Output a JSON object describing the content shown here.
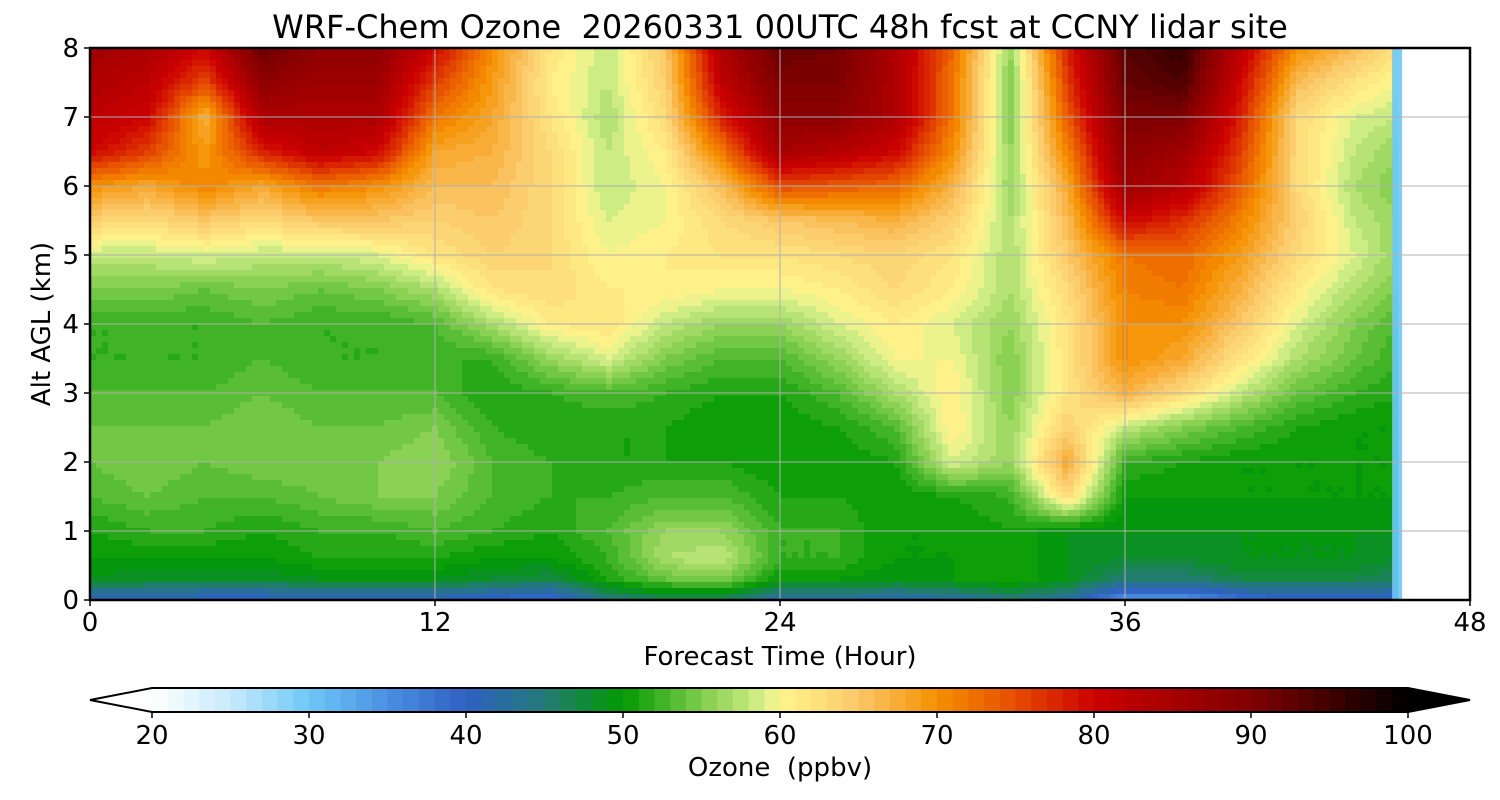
{
  "chart_data": {
    "type": "heatmap",
    "title": "WRF-Chem Ozone  20260331 00UTC 48h fcst at CCNY lidar site",
    "xlabel": "Forecast Time (Hour)",
    "ylabel": "Alt AGL (km)",
    "xlim": [
      0,
      48
    ],
    "ylim": [
      0,
      8
    ],
    "x_ticks": [
      0,
      12,
      24,
      36,
      48
    ],
    "y_ticks": [
      0,
      1,
      2,
      3,
      4,
      5,
      6,
      7,
      8
    ],
    "grid": true,
    "data_extent_x": [
      0,
      45.5
    ],
    "x_hours": [
      0,
      2,
      4,
      6,
      8,
      10,
      12,
      14,
      16,
      18,
      20,
      22,
      24,
      26,
      28,
      30,
      32,
      34,
      36,
      38,
      40,
      42,
      44,
      45.5
    ],
    "y_km": [
      0,
      0.1,
      0.3,
      0.6,
      1,
      1.5,
      2,
      2.5,
      3,
      3.5,
      4,
      4.5,
      5,
      5.5,
      6,
      6.5,
      7,
      7.5,
      8
    ],
    "values_ppbv": [
      [
        40,
        41,
        40,
        40,
        41,
        41,
        40,
        39,
        38,
        44,
        46,
        46,
        42,
        42,
        41,
        42,
        44,
        42,
        34,
        34,
        38,
        40,
        40,
        39
      ],
      [
        43,
        43,
        42,
        42,
        43,
        43,
        43,
        42,
        41,
        47,
        49,
        49,
        45,
        45,
        44,
        45,
        47,
        45,
        38,
        38,
        41,
        42,
        42,
        41
      ],
      [
        49,
        48,
        48,
        48,
        49,
        49,
        49,
        48,
        47,
        51,
        54,
        55,
        50,
        50,
        49,
        50,
        51,
        49,
        45,
        45,
        47,
        47,
        47,
        46
      ],
      [
        50,
        50,
        50,
        50,
        51,
        51,
        51,
        50,
        50,
        52,
        57,
        58,
        52,
        52,
        50,
        50,
        51,
        49,
        48,
        48,
        49,
        49,
        49,
        48
      ],
      [
        51,
        52,
        52,
        51,
        52,
        52,
        53,
        52,
        51,
        53,
        56,
        56,
        52,
        52,
        50,
        50,
        51,
        49,
        49,
        49,
        49,
        49,
        49,
        49
      ],
      [
        53,
        54,
        53,
        53,
        54,
        55,
        55,
        53,
        52,
        52,
        53,
        53,
        51,
        51,
        50,
        51,
        52,
        63,
        50,
        50,
        50,
        50,
        50,
        50
      ],
      [
        54,
        55,
        54,
        55,
        55,
        55,
        56,
        53,
        52,
        51,
        51,
        51,
        50,
        50,
        51,
        59,
        56,
        68,
        52,
        51,
        50,
        50,
        50,
        50
      ],
      [
        54,
        54,
        54,
        55,
        54,
        54,
        55,
        52,
        51,
        51,
        51,
        50,
        50,
        51,
        53,
        61,
        56,
        64,
        58,
        55,
        53,
        51,
        50,
        50
      ],
      [
        53,
        53,
        53,
        54,
        53,
        53,
        53,
        51,
        52,
        53,
        52,
        51,
        51,
        53,
        57,
        61,
        55,
        62,
        67,
        63,
        58,
        54,
        52,
        51
      ],
      [
        52,
        52,
        52,
        53,
        52,
        52,
        52,
        52,
        56,
        59,
        55,
        53,
        53,
        56,
        60,
        60,
        55,
        62,
        70,
        68,
        62,
        57,
        54,
        52
      ],
      [
        52,
        52,
        52,
        53,
        52,
        52,
        53,
        57,
        61,
        62,
        58,
        56,
        56,
        59,
        61,
        59,
        56,
        62,
        70,
        70,
        65,
        59,
        55,
        53
      ],
      [
        55,
        55,
        54,
        55,
        54,
        55,
        57,
        62,
        63,
        61,
        61,
        60,
        60,
        61,
        63,
        61,
        57,
        63,
        71,
        72,
        67,
        61,
        57,
        55
      ],
      [
        58,
        58,
        59,
        58,
        58,
        59,
        62,
        64,
        63,
        60,
        61,
        62,
        62,
        63,
        64,
        62,
        57,
        65,
        72,
        73,
        69,
        63,
        59,
        56
      ],
      [
        64,
        63,
        65,
        63,
        65,
        65,
        64,
        65,
        63,
        59,
        60,
        63,
        65,
        66,
        67,
        64,
        57,
        66,
        80,
        77,
        71,
        64,
        58,
        56
      ],
      [
        70,
        68,
        71,
        68,
        72,
        70,
        66,
        66,
        63,
        58,
        60,
        66,
        75,
        74,
        73,
        67,
        56,
        68,
        86,
        83,
        74,
        63,
        57,
        55
      ],
      [
        80,
        76,
        69,
        78,
        82,
        80,
        68,
        67,
        63,
        58,
        61,
        72,
        85,
        83,
        80,
        70,
        56,
        71,
        88,
        86,
        76,
        63,
        58,
        56
      ],
      [
        82,
        80,
        67,
        84,
        84,
        84,
        72,
        68,
        62,
        57,
        63,
        78,
        88,
        88,
        84,
        72,
        55,
        74,
        90,
        90,
        78,
        63,
        59,
        58
      ],
      [
        84,
        82,
        75,
        88,
        86,
        86,
        76,
        69,
        61,
        58,
        64,
        82,
        90,
        90,
        84,
        72,
        55,
        76,
        92,
        94,
        80,
        66,
        62,
        60
      ],
      [
        86,
        84,
        80,
        92,
        88,
        88,
        80,
        70,
        62,
        58,
        65,
        84,
        92,
        91,
        84,
        73,
        56,
        78,
        93,
        96,
        82,
        70,
        66,
        62
      ]
    ],
    "colorbar": {
      "label": "Ozone  (ppbv)",
      "min": 20,
      "max": 100,
      "step": 1,
      "ticks": [
        20,
        30,
        40,
        50,
        60,
        70,
        80,
        90,
        100
      ],
      "extend": "both",
      "under_color": "#ffffff",
      "over_color": "#000000"
    },
    "colormap_stops": [
      {
        "v": 20,
        "c": "#ffffff"
      },
      {
        "v": 25,
        "c": "#c7eafc"
      },
      {
        "v": 30,
        "c": "#6ec8f6"
      },
      {
        "v": 35,
        "c": "#4a90e2"
      },
      {
        "v": 40,
        "c": "#2f60c2"
      },
      {
        "v": 45,
        "c": "#237a78"
      },
      {
        "v": 50,
        "c": "#009900"
      },
      {
        "v": 55,
        "c": "#7fcc4c"
      },
      {
        "v": 59,
        "c": "#d8f08c"
      },
      {
        "v": 60,
        "c": "#fff58c"
      },
      {
        "v": 65,
        "c": "#fbc86a"
      },
      {
        "v": 70,
        "c": "#f59000"
      },
      {
        "v": 75,
        "c": "#e64c00"
      },
      {
        "v": 80,
        "c": "#cc0000"
      },
      {
        "v": 90,
        "c": "#800000"
      },
      {
        "v": 100,
        "c": "#000000"
      }
    ]
  }
}
